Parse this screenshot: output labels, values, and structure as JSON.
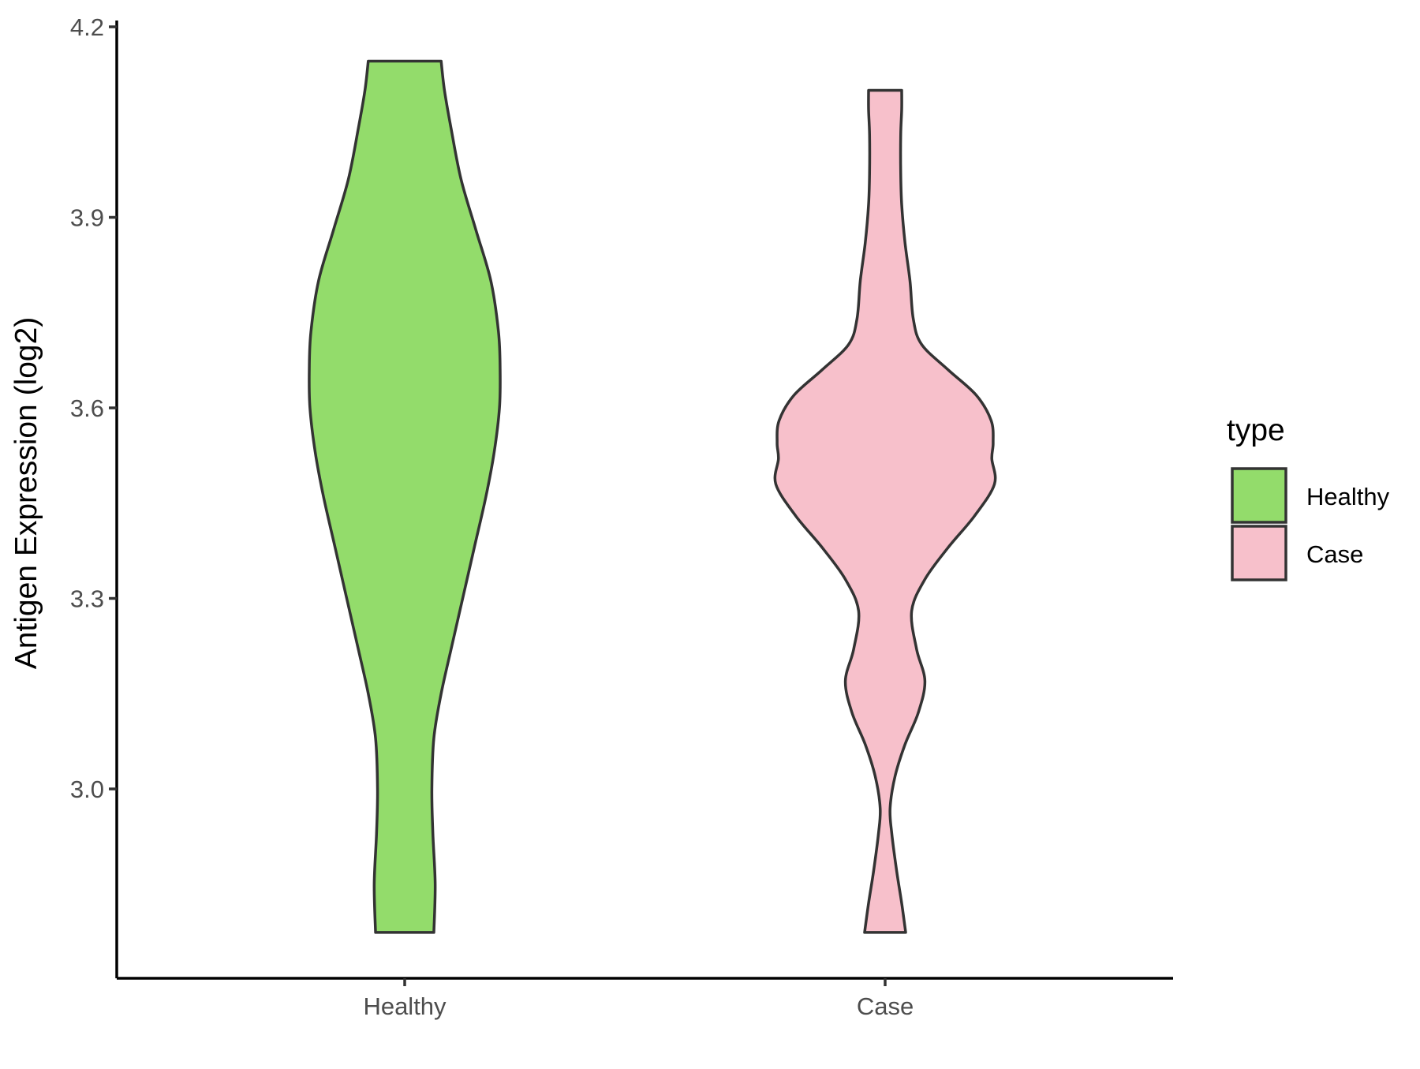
{
  "chart_data": {
    "type": "violin",
    "ylabel": "Antigen Expression (log2)",
    "xlabel": "",
    "ylim": [
      2.7,
      4.2
    ],
    "yticks": [
      "3.0",
      "3.3",
      "3.6",
      "3.9",
      "4.2"
    ],
    "ytick_values": [
      3.0,
      3.3,
      3.6,
      3.9,
      4.2
    ],
    "categories": [
      "Healthy",
      "Case"
    ],
    "grid": false,
    "legend": {
      "title": "type",
      "position": "right",
      "entries": [
        {
          "label": "Healthy",
          "color": "#93dc6b"
        },
        {
          "label": "Case",
          "color": "#f7c0cb"
        }
      ]
    },
    "series": [
      {
        "name": "Healthy",
        "color": "#93dc6b",
        "ymin": 2.774,
        "ymax": 4.146,
        "density": [
          [
            2.774,
            0.088
          ],
          [
            2.85,
            0.092
          ],
          [
            2.93,
            0.085
          ],
          [
            3.0,
            0.082
          ],
          [
            3.08,
            0.088
          ],
          [
            3.15,
            0.11
          ],
          [
            3.22,
            0.14
          ],
          [
            3.3,
            0.175
          ],
          [
            3.38,
            0.21
          ],
          [
            3.46,
            0.245
          ],
          [
            3.53,
            0.27
          ],
          [
            3.6,
            0.286
          ],
          [
            3.66,
            0.288
          ],
          [
            3.72,
            0.283
          ],
          [
            3.8,
            0.26
          ],
          [
            3.88,
            0.215
          ],
          [
            3.96,
            0.17
          ],
          [
            4.04,
            0.14
          ],
          [
            4.1,
            0.12
          ],
          [
            4.146,
            0.11
          ]
        ]
      },
      {
        "name": "Case",
        "color": "#f7c0cb",
        "ymin": 2.774,
        "ymax": 4.1,
        "density": [
          [
            2.774,
            0.062
          ],
          [
            2.82,
            0.05
          ],
          [
            2.87,
            0.035
          ],
          [
            2.93,
            0.02
          ],
          [
            2.97,
            0.015
          ],
          [
            3.02,
            0.03
          ],
          [
            3.07,
            0.06
          ],
          [
            3.12,
            0.1
          ],
          [
            3.17,
            0.12
          ],
          [
            3.22,
            0.095
          ],
          [
            3.28,
            0.08
          ],
          [
            3.33,
            0.12
          ],
          [
            3.38,
            0.19
          ],
          [
            3.43,
            0.27
          ],
          [
            3.48,
            0.33
          ],
          [
            3.52,
            0.322
          ],
          [
            3.545,
            0.326
          ],
          [
            3.58,
            0.32
          ],
          [
            3.62,
            0.275
          ],
          [
            3.66,
            0.19
          ],
          [
            3.7,
            0.11
          ],
          [
            3.74,
            0.085
          ],
          [
            3.8,
            0.075
          ],
          [
            3.86,
            0.06
          ],
          [
            3.92,
            0.05
          ],
          [
            3.97,
            0.047
          ],
          [
            4.03,
            0.047
          ],
          [
            4.07,
            0.05
          ],
          [
            4.1,
            0.05
          ]
        ]
      }
    ]
  }
}
